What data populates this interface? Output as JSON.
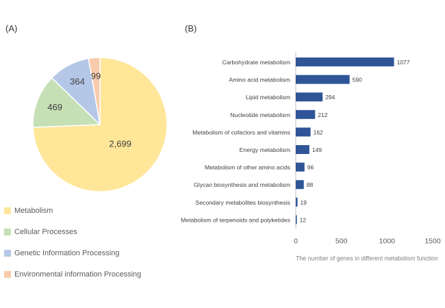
{
  "panels": {
    "a_label": "(A)",
    "b_label": "(B)"
  },
  "chart_data": [
    {
      "type": "pie",
      "labels": [
        "Metabolism",
        "Cellular Processes",
        "Genetic Information Processing",
        "Environmental information Processing"
      ],
      "values": [
        2699,
        469,
        364,
        99
      ],
      "value_labels": [
        "2,699",
        "469",
        "364",
        "99"
      ],
      "colors": [
        "#FFE699",
        "#C5E0B4",
        "#B4C7E7",
        "#F8CBAD"
      ],
      "legend_position": "bottom-left"
    },
    {
      "type": "bar",
      "orientation": "horizontal",
      "categories": [
        "Carbohydrate metabolism",
        "Amino acid metabolism",
        "Lipid metabolism",
        "Nucleotide metabolism",
        "Metabolism of cofactors and vitamins",
        "Energy metabolism",
        "Metabolism of other amino acids",
        "Glycan biosynthesis and metabolism",
        "Secondary metabolites biosynthesis",
        "Metabolism of terpenoids and polyketides"
      ],
      "values": [
        1077,
        590,
        294,
        212,
        162,
        149,
        96,
        88,
        19,
        12
      ],
      "xlabel": "The number of genes in different metabolism function",
      "xlim": [
        0,
        1500
      ],
      "xticks": [
        0,
        500,
        1000,
        1500
      ],
      "bar_color": "#2F5597",
      "grid": false
    }
  ]
}
